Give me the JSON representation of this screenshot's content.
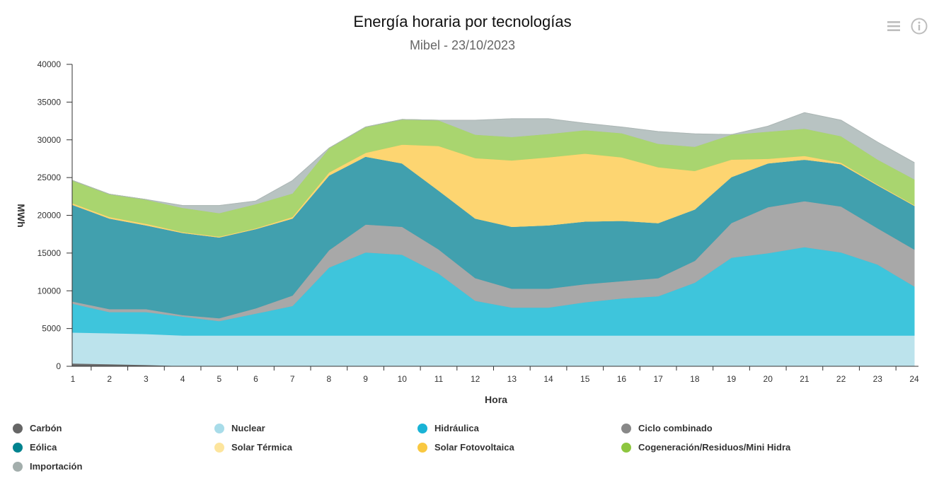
{
  "header": {
    "title": "Energía horaria por tecnologías",
    "subtitle": "Mibel - 23/10/2023",
    "menu_icon": "hamburger-menu-icon",
    "info_icon": "info-circle-icon"
  },
  "chart_data": {
    "type": "area",
    "stacked": true,
    "title": "Energía horaria por tecnologías",
    "subtitle": "Mibel - 23/10/2023",
    "xlabel": "Hora",
    "ylabel": "MWh",
    "ylim": [
      0,
      40000
    ],
    "yticks": [
      0,
      5000,
      10000,
      15000,
      20000,
      25000,
      30000,
      35000,
      40000
    ],
    "ytick_labels": [
      "0",
      "5000",
      "10000",
      "15000",
      "20000",
      "25000",
      "30000",
      "35000",
      "40000"
    ],
    "categories": [
      "1",
      "2",
      "3",
      "4",
      "5",
      "6",
      "7",
      "8",
      "9",
      "10",
      "11",
      "12",
      "13",
      "14",
      "15",
      "16",
      "17",
      "18",
      "19",
      "20",
      "21",
      "22",
      "23",
      "24"
    ],
    "grid": false,
    "legend_position": "bottom",
    "series": [
      {
        "name": "Carbón",
        "color": "#6b6b6b",
        "legend_color": "#666666",
        "values": [
          400,
          300,
          200,
          50,
          0,
          0,
          0,
          0,
          0,
          0,
          0,
          0,
          0,
          0,
          0,
          0,
          0,
          0,
          0,
          0,
          0,
          0,
          0,
          0
        ]
      },
      {
        "name": "Nuclear",
        "color": "#bce3ec",
        "legend_color": "#a8dce9",
        "values": [
          4100,
          4100,
          4100,
          4050,
          4100,
          4100,
          4100,
          4100,
          4100,
          4100,
          4100,
          4100,
          4100,
          4100,
          4100,
          4100,
          4100,
          4100,
          4100,
          4100,
          4100,
          4100,
          4100,
          4100
        ]
      },
      {
        "name": "Hidráulica",
        "color": "#3ec5dc",
        "legend_color": "#1ab3d6",
        "values": [
          3800,
          2800,
          2900,
          2500,
          1900,
          2900,
          3900,
          9000,
          11000,
          10700,
          8200,
          4600,
          3700,
          3700,
          4400,
          4900,
          5200,
          7000,
          10300,
          10900,
          11700,
          11000,
          9400,
          6500
        ]
      },
      {
        "name": "Ciclo combinado",
        "color": "#a8a8a8",
        "legend_color": "#888888",
        "values": [
          300,
          400,
          400,
          200,
          400,
          700,
          1400,
          2300,
          3700,
          3700,
          3200,
          3000,
          2500,
          2500,
          2400,
          2300,
          2400,
          2900,
          4600,
          6100,
          6100,
          6100,
          4800,
          4900
        ]
      },
      {
        "name": "Eólica",
        "color": "#41a0ae",
        "legend_color": "#00838f",
        "values": [
          12800,
          12000,
          11100,
          10900,
          10700,
          10500,
          10200,
          9900,
          9000,
          8400,
          7800,
          7900,
          8200,
          8400,
          8300,
          8000,
          7300,
          6800,
          6100,
          5800,
          5500,
          5600,
          5700,
          5800
        ]
      },
      {
        "name": "Solar Térmica",
        "color": "#fde295",
        "legend_color": "#fde59d",
        "values": [
          0,
          0,
          0,
          0,
          0,
          0,
          0,
          0,
          0,
          0,
          0,
          0,
          0,
          0,
          0,
          0,
          0,
          0,
          0,
          0,
          0,
          0,
          0,
          0
        ]
      },
      {
        "name": "Solar Fotovoltaica",
        "color": "#fdd571",
        "legend_color": "#f9c841",
        "values": [
          200,
          200,
          200,
          100,
          100,
          100,
          200,
          400,
          500,
          2500,
          5900,
          8000,
          8800,
          9000,
          9000,
          8400,
          7400,
          5100,
          2300,
          600,
          500,
          200,
          100,
          100
        ]
      },
      {
        "name": "Cogeneración/Residuos/Mini Hidra",
        "color": "#a9d56f",
        "legend_color": "#8dc63f",
        "values": [
          3000,
          3000,
          3200,
          3200,
          3100,
          3200,
          3100,
          3200,
          3400,
          3300,
          3400,
          3100,
          3100,
          3100,
          3100,
          3200,
          3100,
          3200,
          3300,
          3600,
          3600,
          3500,
          3300,
          3400
        ]
      },
      {
        "name": "Importación",
        "color": "#b8c3c2",
        "legend_color": "#a3aeac",
        "values": [
          0,
          0,
          0,
          300,
          1000,
          400,
          1700,
          0,
          0,
          0,
          0,
          1900,
          2400,
          2000,
          900,
          800,
          1600,
          1700,
          0,
          700,
          2100,
          2100,
          2300,
          2200
        ]
      }
    ]
  }
}
